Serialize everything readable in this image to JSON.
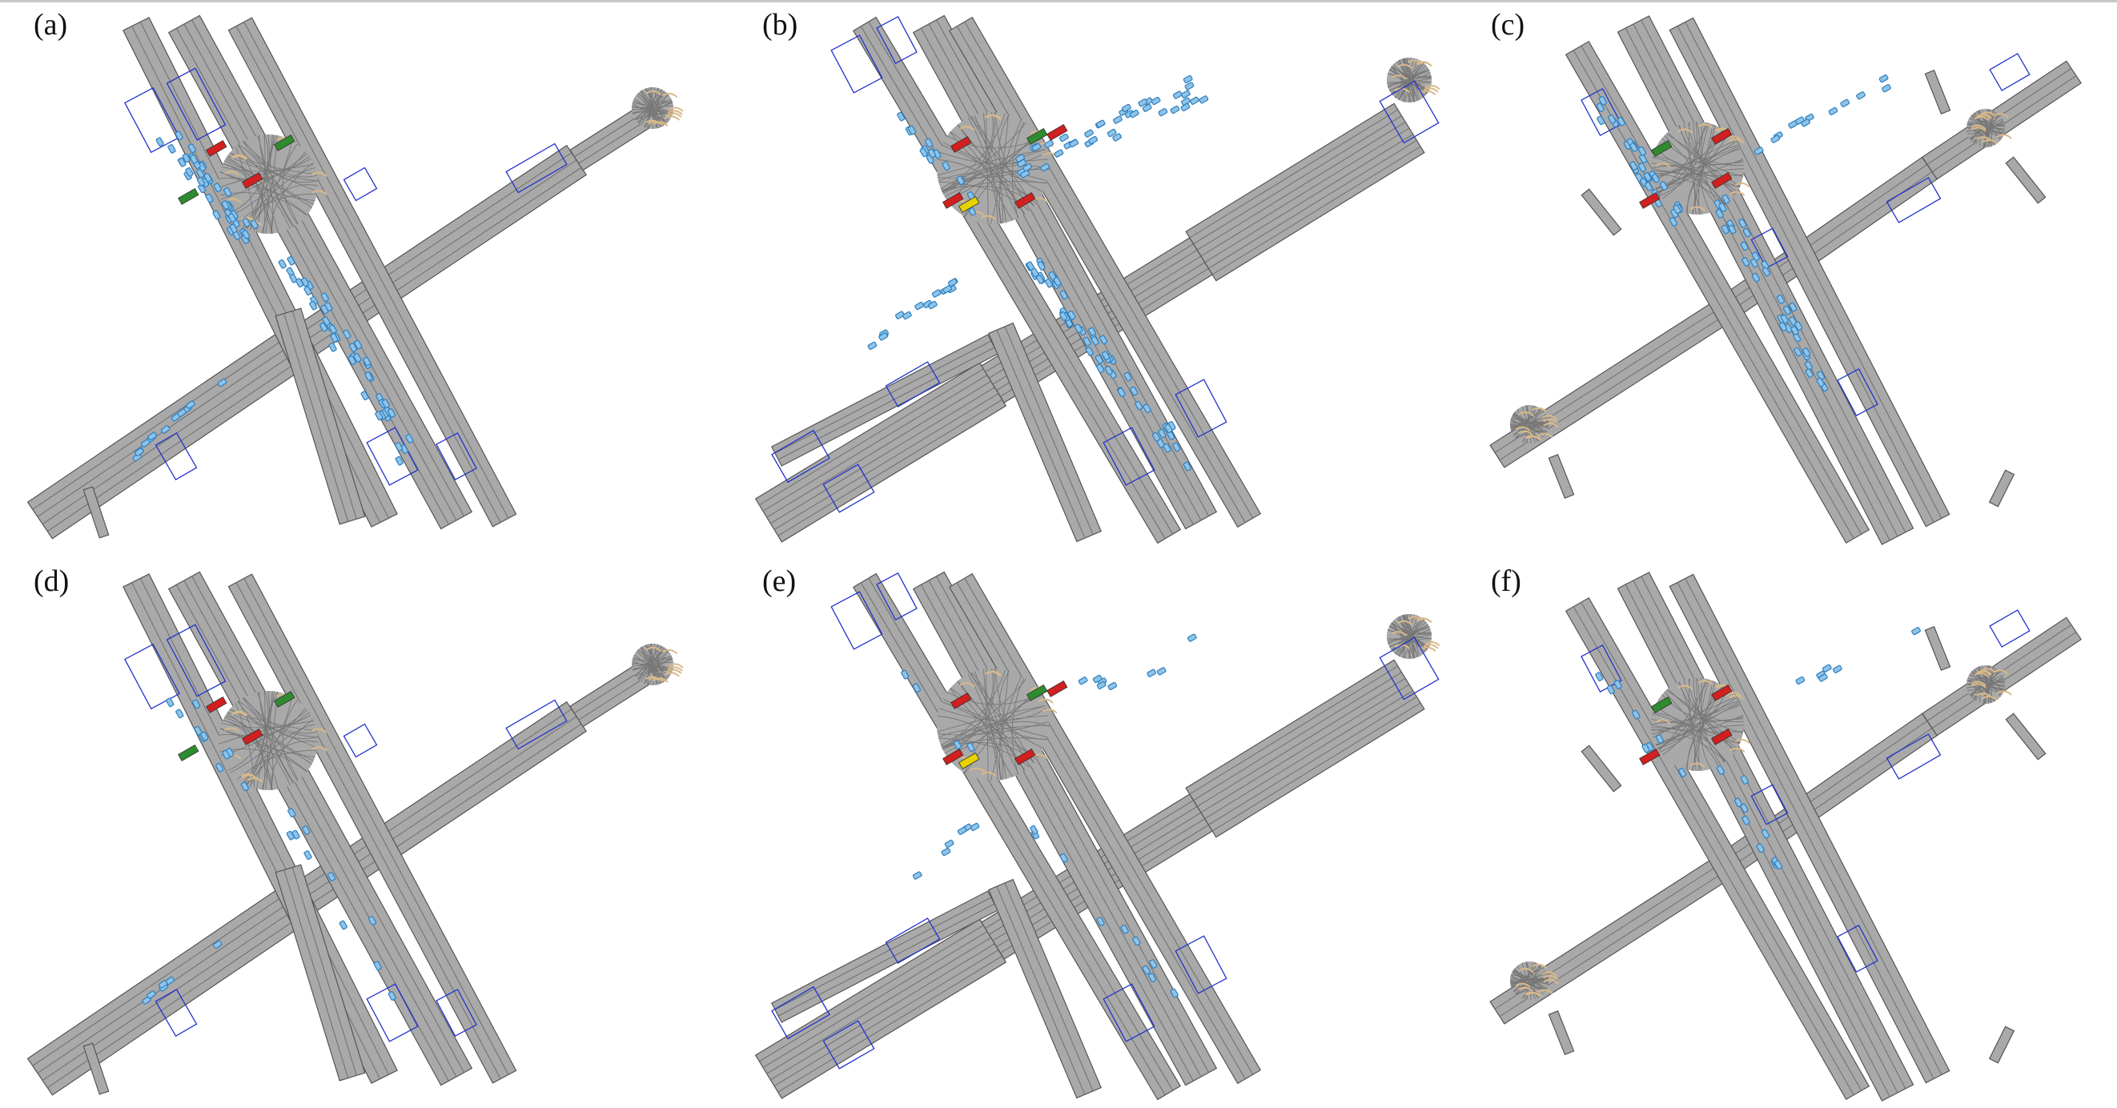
{
  "figure": {
    "panels": [
      {
        "label": "(a)"
      },
      {
        "label": "(b)"
      },
      {
        "label": "(c)"
      },
      {
        "label": "(d)"
      },
      {
        "label": "(e)"
      },
      {
        "label": "(f)"
      }
    ]
  },
  "colors": {
    "road": "#a9a9a9",
    "road_edge": "#555555",
    "lane_line": "#6e6e6e",
    "crosswalk": "#d9b98a",
    "boundary": "#2233cc",
    "vehicle": "#2d7fc0",
    "signal_red": "#d21f1f",
    "signal_green": "#2e8b2e",
    "signal_yellow": "#e8d200"
  }
}
